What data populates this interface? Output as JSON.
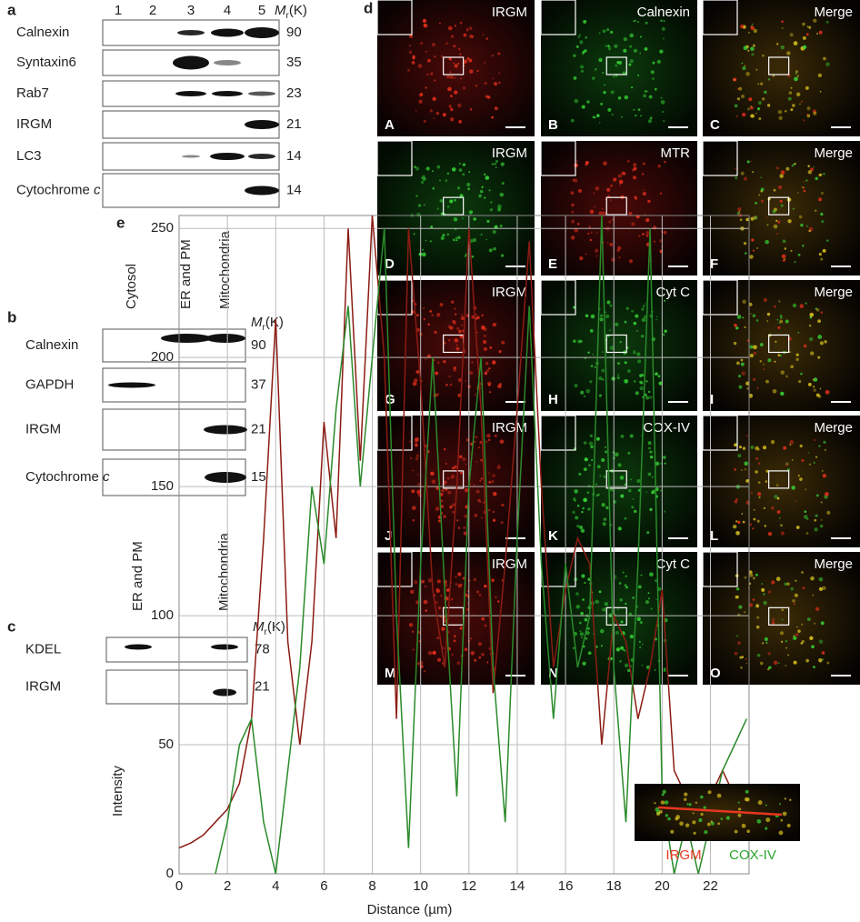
{
  "panel_a": {
    "label": "a",
    "lanes": [
      "1",
      "2",
      "3",
      "4",
      "5"
    ],
    "mr_label": {
      "main": "M",
      "sub": "r",
      "unit": "(K)"
    },
    "rows": [
      {
        "name": "Calnexin",
        "weight": "90"
      },
      {
        "name": "Syntaxin6",
        "weight": "35"
      },
      {
        "name": "Rab7",
        "weight": "23"
      },
      {
        "name": "IRGM",
        "weight": "21"
      },
      {
        "name": "LC3",
        "weight": "14"
      },
      {
        "name": "Cytochrome",
        "name_italic": "c",
        "weight": "14"
      }
    ]
  },
  "panel_b": {
    "label": "b",
    "lanes": [
      "Cytosol",
      "ER and PM",
      "Mitochondria"
    ],
    "mr_label": {
      "main": "M",
      "sub": "r",
      "unit": "(K)"
    },
    "rows": [
      {
        "name": "Calnexin",
        "weight": "90"
      },
      {
        "name": "GAPDH",
        "weight": "37"
      },
      {
        "name": "IRGM",
        "weight": "21"
      },
      {
        "name": "Cytochrome",
        "name_italic": "c",
        "weight": "15"
      }
    ]
  },
  "panel_c": {
    "label": "c",
    "lanes": [
      "ER and PM",
      "Mitochondria"
    ],
    "mr_label": {
      "main": "M",
      "sub": "r",
      "unit": "(K)"
    },
    "rows": [
      {
        "name": "KDEL",
        "weight": "78"
      },
      {
        "name": "IRGM",
        "weight": "21"
      }
    ]
  },
  "panel_d": {
    "label": "d",
    "images": [
      {
        "stain": "IRGM",
        "letter": "A"
      },
      {
        "stain": "Calnexin",
        "letter": "B"
      },
      {
        "stain": "Merge",
        "letter": "C"
      },
      {
        "stain": "IRGM",
        "letter": "D"
      },
      {
        "stain": "MTR",
        "letter": "E"
      },
      {
        "stain": "Merge",
        "letter": "F"
      },
      {
        "stain": "IRGM",
        "letter": "G"
      },
      {
        "stain": "Cyt C",
        "letter": "H"
      },
      {
        "stain": "Merge",
        "letter": "I"
      },
      {
        "stain": "IRGM",
        "letter": "J"
      },
      {
        "stain": "COX-IV",
        "letter": "K"
      },
      {
        "stain": "Merge",
        "letter": "L"
      },
      {
        "stain": "IRGM",
        "letter": "M"
      },
      {
        "stain": "Cyt C",
        "letter": "N"
      },
      {
        "stain": "Merge",
        "letter": "O"
      }
    ]
  },
  "chart_data": {
    "type": "line",
    "panel_label": "e",
    "x_label": "Distance (µm)",
    "y_label": "Intensity",
    "x": [
      0,
      0.5,
      1,
      1.5,
      2,
      2.5,
      3,
      3.5,
      4,
      4.5,
      5,
      5.5,
      6,
      6.5,
      7,
      7.5,
      8,
      8.5,
      9,
      9.5,
      10,
      10.5,
      11,
      11.5,
      12,
      12.5,
      13,
      13.5,
      14,
      14.5,
      15,
      15.5,
      16,
      16.5,
      17,
      17.5,
      18,
      18.5,
      19,
      19.5,
      20,
      20.5,
      21,
      21.5,
      22,
      22.5,
      23,
      23.5
    ],
    "series": [
      {
        "name": "IRGM",
        "color": "#8b1c14",
        "label_color": "#e8361f",
        "values": [
          10,
          12,
          15,
          20,
          25,
          35,
          60,
          130,
          215,
          90,
          50,
          90,
          175,
          130,
          250,
          160,
          255,
          200,
          60,
          250,
          190,
          110,
          80,
          150,
          250,
          180,
          70,
          120,
          180,
          245,
          150,
          80,
          110,
          130,
          120,
          50,
          100,
          90,
          60,
          80,
          110,
          40,
          30,
          20,
          30,
          40,
          30,
          30
        ]
      },
      {
        "name": "COX-IV",
        "color": "#2a8a2a",
        "label_color": "#2aa52a",
        "values": [
          null,
          null,
          null,
          0,
          20,
          50,
          60,
          20,
          0,
          40,
          80,
          150,
          120,
          180,
          220,
          150,
          200,
          250,
          100,
          10,
          120,
          200,
          110,
          30,
          150,
          200,
          80,
          20,
          130,
          220,
          120,
          60,
          120,
          80,
          100,
          255,
          80,
          20,
          120,
          250,
          30,
          0,
          20,
          0,
          20,
          40,
          50,
          60
        ]
      }
    ],
    "xlim": [
      0,
      23.6
    ],
    "ylim": [
      0,
      255
    ],
    "xticks": [
      0,
      2,
      4,
      6,
      8,
      10,
      12,
      14,
      16,
      18,
      20,
      22
    ],
    "yticks": [
      0,
      50,
      100,
      150,
      200,
      250
    ],
    "grid": true
  }
}
